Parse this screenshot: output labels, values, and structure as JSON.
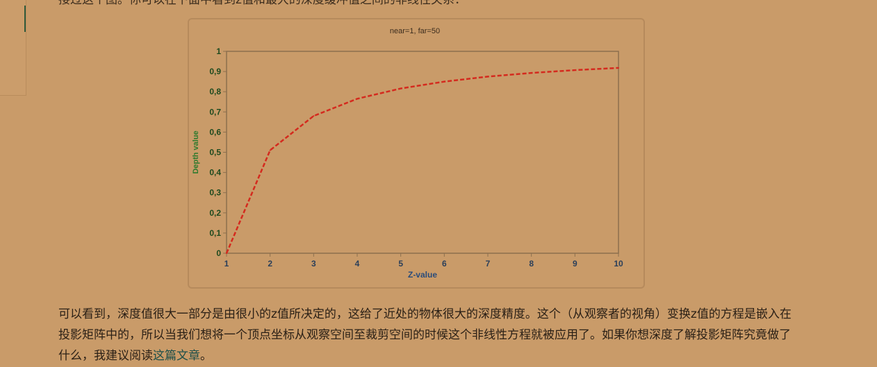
{
  "page": {
    "top_text": "接过这个图。你可以在下面中看到z值和最大的深度缓冲值之间的非线性关系：",
    "paragraph_before_link": "可以看到，深度值很大一部分是由很小的z值所决定的，这给了近处的物体很大的深度精度。这个（从观察者的视角）变换z值的方程是嵌入在投影矩阵中的，所以当我们想将一个顶点坐标从观察空间至裁剪空间的时候这个非线性方程就被应用了。如果你想深度了解投影矩阵究竟做了什么，我建议阅读",
    "link_text": "这篇文章",
    "paragraph_after_link": "。"
  },
  "colors": {
    "background": "#c99b69",
    "series_line": "#d42a1e",
    "axis_line": "#8c6f4e",
    "tick_label_y": "#1e4a1e",
    "tick_label_x": "#2a3f5a",
    "ylabel_color": "#2e7a2e",
    "xlabel_color": "#2a4c7a",
    "link": "#1d4f4a"
  },
  "chart_data": {
    "type": "line",
    "title": "near=1, far=50",
    "xlabel": "Z-value",
    "ylabel": "Depth value",
    "x": [
      1,
      2,
      3,
      4,
      5,
      6,
      7,
      8,
      9,
      10
    ],
    "xtick_labels": [
      "1",
      "2",
      "3",
      "4",
      "5",
      "6",
      "7",
      "8",
      "9",
      "10"
    ],
    "ytick_values": [
      0,
      0.1,
      0.2,
      0.3,
      0.4,
      0.5,
      0.6,
      0.7,
      0.8,
      0.9,
      1
    ],
    "ytick_labels": [
      "0",
      "0,1",
      "0,2",
      "0,3",
      "0,4",
      "0,5",
      "0,6",
      "0,7",
      "0,8",
      "0,9",
      "1"
    ],
    "xlim": [
      1,
      10
    ],
    "ylim": [
      0,
      1
    ],
    "grid": false,
    "series": [
      {
        "style": "dashed",
        "values": [
          0,
          0.51,
          0.68,
          0.765,
          0.816,
          0.85,
          0.875,
          0.893,
          0.907,
          0.918
        ]
      }
    ]
  }
}
